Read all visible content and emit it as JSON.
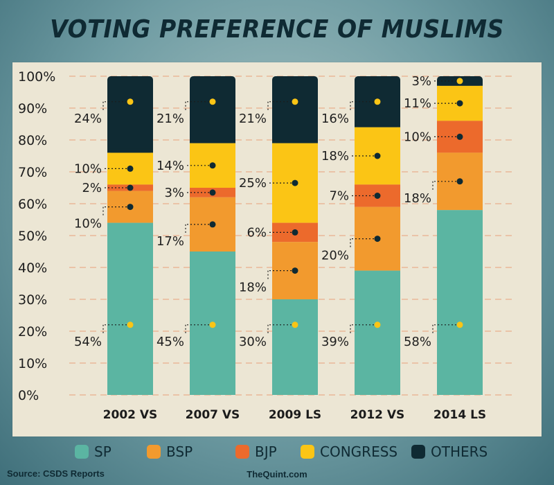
{
  "chart_data": {
    "type": "bar",
    "stacked": true,
    "title": "VOTING PREFERENCE OF MUSLIMS",
    "categories": [
      "2002 VS",
      "2007 VS",
      "2009 LS",
      "2012 VS",
      "2014 LS"
    ],
    "series": [
      {
        "name": "SP",
        "color": "#5bb5a2",
        "values": [
          54,
          45,
          30,
          39,
          58
        ],
        "labels": [
          "54%",
          "45%",
          "30%",
          "39%",
          "58%"
        ]
      },
      {
        "name": "BSP",
        "color": "#f29a2e",
        "values": [
          10,
          17,
          18,
          20,
          18
        ],
        "labels": [
          "10%",
          "17%",
          "18%",
          "20%",
          "18%"
        ]
      },
      {
        "name": "BJP",
        "color": "#ec6a2c",
        "values": [
          2,
          3,
          6,
          7,
          10
        ],
        "labels": [
          "2%",
          "3%",
          "6%",
          "7%",
          "10%"
        ]
      },
      {
        "name": "CONGRESS",
        "color": "#fbc515",
        "values": [
          10,
          14,
          25,
          18,
          11
        ],
        "labels": [
          "10%",
          "14%",
          "25%",
          "18%",
          "11%"
        ]
      },
      {
        "name": "OTHERS",
        "color": "#0f2a33",
        "values": [
          24,
          21,
          21,
          16,
          3
        ],
        "labels": [
          "24%",
          "21%",
          "21%",
          "16%",
          "3%"
        ]
      }
    ],
    "ylim": [
      0,
      100
    ],
    "yticks": [
      "0%",
      "10%",
      "20%",
      "30%",
      "40%",
      "50%",
      "60%",
      "70%",
      "80%",
      "90%",
      "100%"
    ],
    "grid": true,
    "legend": "bottom"
  },
  "footer": {
    "source": "Source: CSDS Reports",
    "brand": "TheQuint.com"
  }
}
